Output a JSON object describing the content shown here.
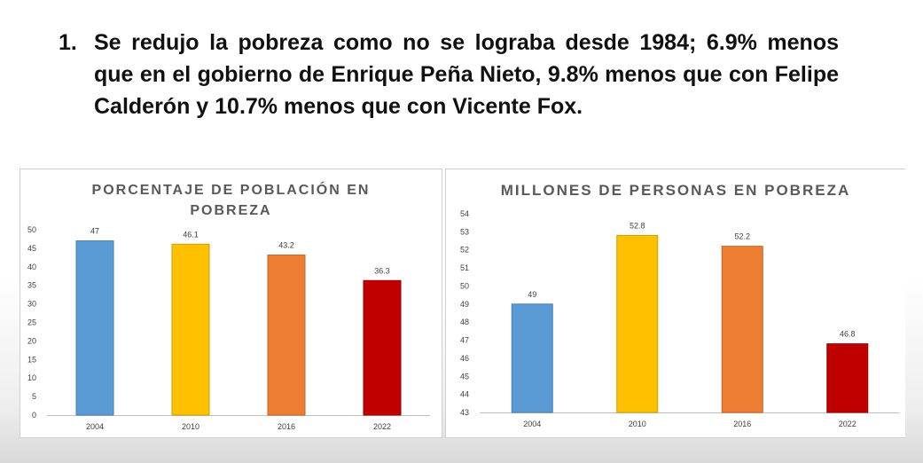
{
  "headline": {
    "number": "1.",
    "text": "Se redujo la pobreza como no se lograba desde 1984; 6.9% menos que en el gobierno de Enrique Peña Nieto, 9.8% menos que con Felipe Calderón y 10.7% menos que con Vicente Fox."
  },
  "chart_data": [
    {
      "type": "bar",
      "title": "PORCENTAJE DE POBLACIÓN EN POBREZA",
      "categories": [
        "2004",
        "2010",
        "2016",
        "2022"
      ],
      "values": [
        47,
        46.1,
        43.2,
        36.3
      ],
      "data_labels": [
        "47",
        "46.1",
        "43.2",
        "36.3"
      ],
      "bar_colors": [
        "#5b9bd5",
        "#ffc000",
        "#ed7d31",
        "#c00000"
      ],
      "ylim": [
        0,
        50
      ],
      "yticks": [
        0,
        5,
        10,
        15,
        20,
        25,
        30,
        35,
        40,
        45,
        50
      ],
      "grid": false,
      "legend": "none"
    },
    {
      "type": "bar",
      "title": "MILLONES DE PERSONAS EN POBREZA",
      "categories": [
        "2004",
        "2010",
        "2016",
        "2022"
      ],
      "values": [
        49,
        52.8,
        52.2,
        46.8
      ],
      "data_labels": [
        "49",
        "52.8",
        "52.2",
        "46.8"
      ],
      "bar_colors": [
        "#5b9bd5",
        "#ffc000",
        "#ed7d31",
        "#c00000"
      ],
      "ylim": [
        43,
        54
      ],
      "yticks": [
        43,
        44,
        45,
        46,
        47,
        48,
        49,
        50,
        51,
        52,
        53,
        54
      ],
      "grid": false,
      "legend": "none"
    }
  ]
}
